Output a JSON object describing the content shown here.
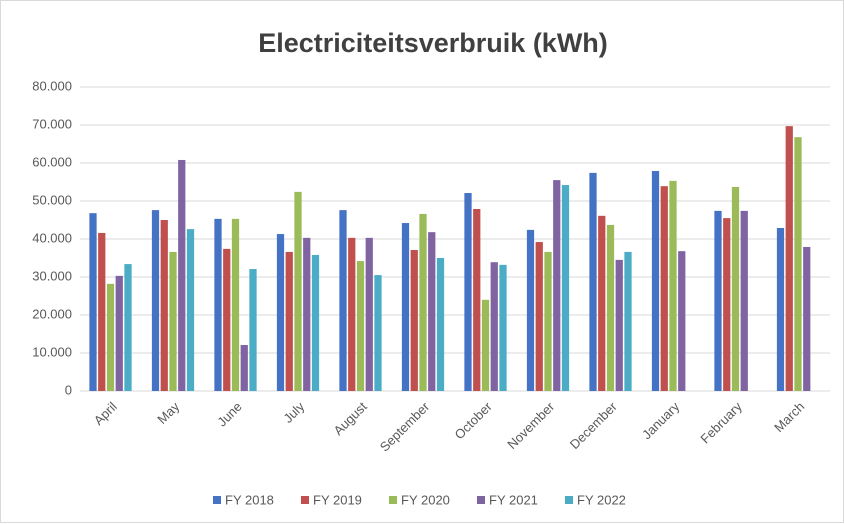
{
  "chart_data": {
    "type": "bar",
    "title": "Electriciteitsverbruik (kWh)",
    "categories": [
      "April",
      "May",
      "June",
      "July",
      "August",
      "September",
      "October",
      "November",
      "December",
      "January",
      "February",
      "March"
    ],
    "series": [
      {
        "name": "FY 2018",
        "color": "#4472c4",
        "values": [
          46800,
          47600,
          45300,
          41300,
          47600,
          44200,
          52100,
          42400,
          57400,
          57900,
          47400,
          42900
        ]
      },
      {
        "name": "FY 2019",
        "color": "#c0504d",
        "values": [
          41600,
          45000,
          37400,
          36600,
          40300,
          37100,
          47900,
          39200,
          46100,
          53900,
          45500,
          69700
        ]
      },
      {
        "name": "FY 2020",
        "color": "#9bbb59",
        "values": [
          28200,
          36600,
          45300,
          52400,
          34200,
          46600,
          24000,
          36600,
          43700,
          55300,
          53700,
          66800
        ]
      },
      {
        "name": "FY 2021",
        "color": "#8064a2",
        "values": [
          30300,
          60800,
          12100,
          40300,
          40300,
          41800,
          33900,
          55500,
          34500,
          36800,
          47400,
          37900
        ]
      },
      {
        "name": "FY 2022",
        "color": "#4bacc6",
        "values": [
          33400,
          42600,
          32100,
          35800,
          30500,
          35000,
          33200,
          54200,
          36600,
          null,
          null,
          null
        ]
      }
    ],
    "ylim": [
      0,
      80000
    ],
    "yticks": [
      0,
      {
        "value": 10000,
        "label": "10.000"
      },
      {
        "value": 20000,
        "label": "20.000"
      },
      {
        "value": 30000,
        "label": "30.000"
      },
      {
        "value": 40000,
        "label": "40.000"
      },
      {
        "value": 50000,
        "label": "50.000"
      },
      {
        "value": 60000,
        "label": "60.000"
      },
      {
        "value": 70000,
        "label": "70.000"
      },
      {
        "value": 80000,
        "label": "80.000"
      }
    ],
    "grid": true,
    "legend": "bottom"
  }
}
